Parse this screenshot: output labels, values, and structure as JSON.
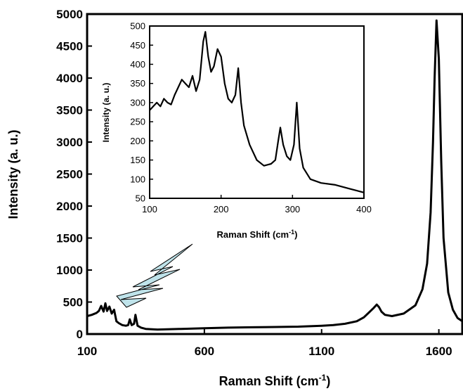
{
  "chart_data": [
    {
      "id": "main",
      "type": "line",
      "title": "",
      "xlabel": "Raman Shift (cm",
      "xlabel_sup": "-1",
      "xlabel_end": ")",
      "ylabel": "Intensity (a. u.)",
      "xlim": [
        100,
        1700
      ],
      "ylim": [
        0,
        5000
      ],
      "xticks": [
        100,
        600,
        1100,
        1600
      ],
      "yticks": [
        0,
        500,
        1000,
        1500,
        2000,
        2500,
        3000,
        3500,
        4000,
        4500,
        5000
      ],
      "grid": false,
      "line_color": "#000000",
      "series": [
        {
          "x": [
            100,
            120,
            140,
            150,
            160,
            170,
            178,
            185,
            195,
            205,
            215,
            225,
            235,
            250,
            265,
            275,
            282,
            290,
            300,
            306,
            315,
            330,
            350,
            400,
            500,
            600,
            700,
            800,
            900,
            1000,
            1100,
            1150,
            1200,
            1250,
            1280,
            1300,
            1320,
            1335,
            1345,
            1355,
            1370,
            1400,
            1450,
            1500,
            1530,
            1550,
            1565,
            1575,
            1582,
            1590,
            1600,
            1610,
            1620,
            1640,
            1660,
            1680,
            1700
          ],
          "y": [
            280,
            300,
            330,
            360,
            440,
            350,
            480,
            360,
            430,
            320,
            380,
            200,
            170,
            140,
            130,
            140,
            230,
            140,
            160,
            300,
            130,
            100,
            80,
            70,
            80,
            90,
            100,
            105,
            110,
            115,
            130,
            140,
            160,
            200,
            260,
            330,
            400,
            460,
            420,
            350,
            300,
            280,
            320,
            450,
            700,
            1100,
            1900,
            3000,
            4000,
            4900,
            4300,
            2700,
            1500,
            650,
            380,
            250,
            200
          ]
        }
      ]
    },
    {
      "id": "inset",
      "type": "line",
      "title": "",
      "xlabel": "Raman Shift (cm",
      "xlabel_sup": "-1",
      "xlabel_end": ")",
      "ylabel": "Intensity (a. u.)",
      "xlim": [
        100,
        400
      ],
      "ylim": [
        50,
        500
      ],
      "xticks": [
        100,
        200,
        300,
        400
      ],
      "yticks": [
        50,
        100,
        150,
        200,
        250,
        300,
        350,
        400,
        450,
        500
      ],
      "grid": false,
      "line_color": "#000000",
      "series": [
        {
          "x": [
            100,
            105,
            110,
            115,
            120,
            125,
            130,
            135,
            140,
            145,
            150,
            155,
            160,
            165,
            170,
            175,
            178,
            182,
            186,
            190,
            195,
            200,
            205,
            210,
            215,
            220,
            224,
            228,
            232,
            240,
            250,
            260,
            270,
            276,
            280,
            283,
            287,
            292,
            297,
            302,
            306,
            310,
            315,
            325,
            340,
            360,
            380,
            400
          ],
          "y": [
            280,
            290,
            300,
            290,
            310,
            300,
            295,
            320,
            340,
            360,
            350,
            340,
            370,
            330,
            360,
            460,
            485,
            420,
            380,
            395,
            440,
            420,
            350,
            310,
            300,
            320,
            390,
            300,
            240,
            190,
            150,
            135,
            140,
            150,
            200,
            235,
            190,
            160,
            150,
            190,
            300,
            180,
            130,
            100,
            90,
            85,
            75,
            65
          ]
        }
      ]
    }
  ]
}
